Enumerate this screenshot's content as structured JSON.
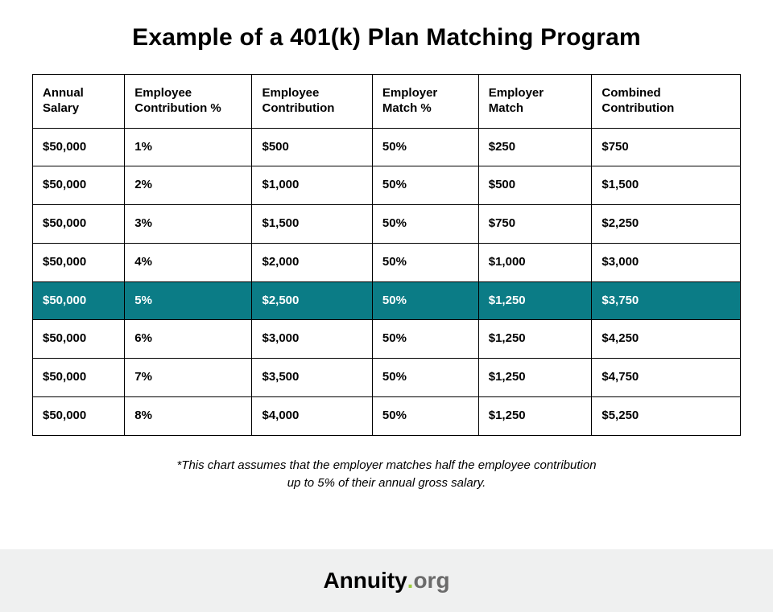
{
  "title": "Example of a 401(k) Plan Matching Program",
  "table": {
    "type": "table",
    "border_color": "#000000",
    "cell_font_size_pt": 11,
    "header_font_weight": 700,
    "body_font_weight": 700,
    "highlight_row_index": 4,
    "highlight_bg": "#0b7c86",
    "highlight_fg": "#ffffff",
    "column_widths_pct": [
      13,
      18,
      17,
      15,
      16,
      21
    ],
    "columns": [
      "Annual Salary",
      "Employee Contribution %",
      "Employee Contribution",
      "Employer Match %",
      "Employer Match",
      "Combined Contribution"
    ],
    "rows": [
      [
        "$50,000",
        "1%",
        "$500",
        "50%",
        "$250",
        "$750"
      ],
      [
        "$50,000",
        "2%",
        "$1,000",
        "50%",
        "$500",
        "$1,500"
      ],
      [
        "$50,000",
        "3%",
        "$1,500",
        "50%",
        "$750",
        "$2,250"
      ],
      [
        "$50,000",
        "4%",
        "$2,000",
        "50%",
        "$1,000",
        "$3,000"
      ],
      [
        "$50,000",
        "5%",
        "$2,500",
        "50%",
        "$1,250",
        "$3,750"
      ],
      [
        "$50,000",
        "6%",
        "$3,000",
        "50%",
        "$1,250",
        "$4,250"
      ],
      [
        "$50,000",
        "7%",
        "$3,500",
        "50%",
        "$1,250",
        "$4,750"
      ],
      [
        "$50,000",
        "8%",
        "$4,000",
        "50%",
        "$1,250",
        "$5,250"
      ]
    ]
  },
  "footnote_line1": "*This chart assumes that the employer matches half the employee contribution",
  "footnote_line2": "up to 5% of their annual gross salary.",
  "brand": {
    "name": "Annuity",
    "dot": ".",
    "tld": "org",
    "bg_color": "#eff0f0",
    "dot_color": "#9ccc3c",
    "tld_color": "#6b6b6b"
  },
  "page_bg": "#ffffff"
}
